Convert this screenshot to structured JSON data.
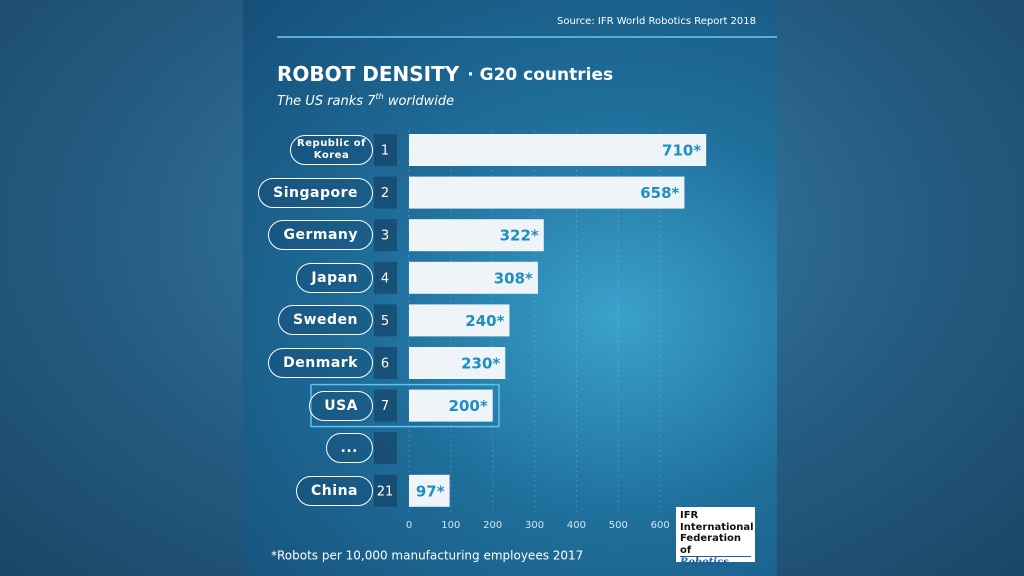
{
  "source": "Source: IFR World Robotics Report 2018",
  "chart_data": {
    "type": "bar",
    "orientation": "horizontal",
    "title": "ROBOT DENSITY",
    "title_suffix": "· G20 countries",
    "subtitle": [
      "The US ranks 7",
      "th",
      " worldwide"
    ],
    "categories": [
      "Republic of Korea",
      "Singapore",
      "Germany",
      "Japan",
      "Sweden",
      "Denmark",
      "USA",
      "...",
      "China"
    ],
    "ranks": [
      "1",
      "2",
      "3",
      "4",
      "5",
      "6",
      "7",
      null,
      "21"
    ],
    "values": [
      710,
      658,
      322,
      308,
      240,
      230,
      200,
      null,
      97
    ],
    "value_labels": [
      "710*",
      "658*",
      "322*",
      "308*",
      "240*",
      "230*",
      "200*",
      null,
      "97*"
    ],
    "color": "#eef4f8",
    "label_color": "#1f8ec0",
    "highlight": "USA",
    "xlim": [
      0,
      700
    ],
    "xticks": [
      0,
      100,
      200,
      300,
      400,
      500,
      600
    ],
    "grid": true
  },
  "footnote": "*Robots per 10,000 manufacturing employees 2017",
  "logo": {
    "lines": [
      "IFR",
      "International",
      "Federation of",
      "Robotics"
    ]
  }
}
